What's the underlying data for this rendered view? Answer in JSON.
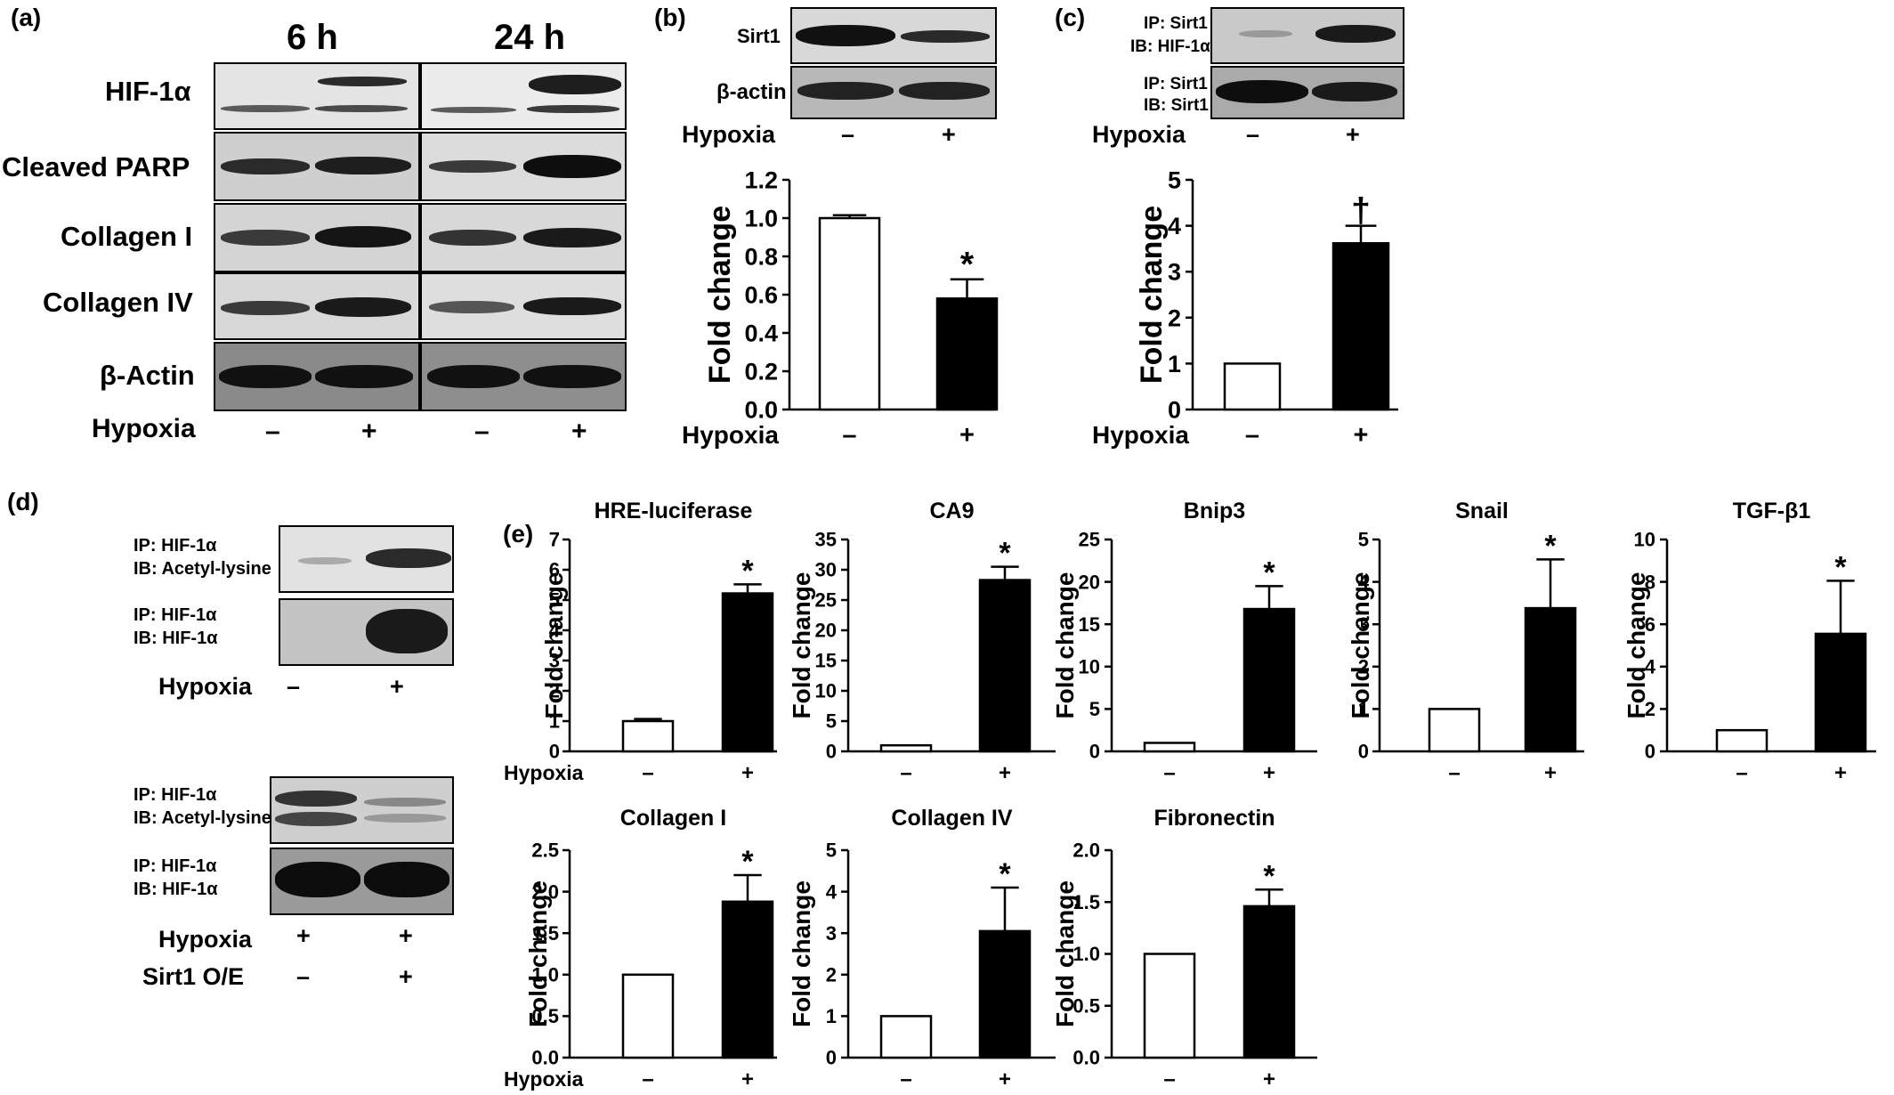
{
  "panel_letters": {
    "a": "(a)",
    "b": "(b)",
    "c": "(c)",
    "d": "(d)",
    "e": "(e)"
  },
  "panel_a": {
    "time_6h": "6 h",
    "time_24h": "24 h",
    "rows": [
      "HIF-1α",
      "Cleaved PARP",
      "Collagen I",
      "Collagen IV",
      "β-Actin"
    ],
    "condition": "Hypoxia",
    "lanes": [
      "–",
      "+",
      "–",
      "+"
    ]
  },
  "panel_b": {
    "blot_rows": [
      "Sirt1",
      "β-actin"
    ],
    "condition": "Hypoxia",
    "lanes": [
      "–",
      "+"
    ]
  },
  "panel_c": {
    "row1_ip": "IP: Sirt1",
    "row1_ib": "IB: HIF-1α",
    "row2_ip": "IP: Sirt1",
    "row2_ib": "IB: Sirt1",
    "condition": "Hypoxia",
    "lanes": [
      "–",
      "+"
    ]
  },
  "panel_d": {
    "top": {
      "row1_ip": "IP:  HIF-1α",
      "row1_ib": "IB: Acetyl-lysine",
      "row2_ip": "IP:  HIF-1α",
      "row2_ib": "IB:  HIF-1α",
      "condition": "Hypoxia",
      "lanes": [
        "–",
        "+"
      ]
    },
    "bottom": {
      "row1_ip": "IP:  HIF-1α",
      "row1_ib": "IB: Acetyl-lysine",
      "row2_ip": "IP:  HIF-1α",
      "row2_ib": "IB:  HIF-1α",
      "condition1": "Hypoxia",
      "condition1_lanes": [
        "+",
        "+"
      ],
      "condition2": "Sirt1 O/E",
      "condition2_lanes": [
        "–",
        "+"
      ]
    }
  },
  "chart_data": [
    {
      "id": "b",
      "type": "bar",
      "title": "",
      "ylabel": "Fold change",
      "categories": [
        "–",
        "+"
      ],
      "values": [
        1.0,
        0.58
      ],
      "errors": [
        0.015,
        0.1
      ],
      "ylim": [
        0,
        1.2
      ],
      "yticks": [
        "0.0",
        "0.2",
        "0.4",
        "0.6",
        "0.8",
        "1.0",
        "1.2"
      ],
      "annotation": "*",
      "xlabel": "Hypoxia",
      "fill": [
        "#ffffff",
        "#000000"
      ]
    },
    {
      "id": "c",
      "type": "bar",
      "title": "",
      "ylabel": "Fold change",
      "categories": [
        "–",
        "+"
      ],
      "values": [
        1.0,
        3.62
      ],
      "errors": [
        0,
        0.38
      ],
      "ylim": [
        0,
        5
      ],
      "yticks": [
        "0",
        "1",
        "2",
        "3",
        "4",
        "5"
      ],
      "annotation": "†",
      "xlabel": "Hypoxia",
      "fill": [
        "#ffffff",
        "#000000"
      ]
    },
    {
      "id": "e1",
      "type": "bar",
      "title": "HRE-luciferase",
      "ylabel": "Fold change",
      "categories": [
        "–",
        "+"
      ],
      "values": [
        1.0,
        5.22
      ],
      "errors": [
        0.07,
        0.3
      ],
      "ylim": [
        0,
        7
      ],
      "yticks": [
        "0",
        "1",
        "2",
        "3",
        "4",
        "5",
        "6",
        "7"
      ],
      "annotation": "*",
      "xlabel": "Hypoxia",
      "fill": [
        "#ffffff",
        "#000000"
      ]
    },
    {
      "id": "e2",
      "type": "bar",
      "title": "CA9",
      "ylabel": "Fold change",
      "categories": [
        "–",
        "+"
      ],
      "values": [
        1.0,
        28.3
      ],
      "errors": [
        0,
        2.2
      ],
      "ylim": [
        0,
        35
      ],
      "yticks": [
        "0",
        "5",
        "10",
        "15",
        "20",
        "25",
        "30",
        "35"
      ],
      "annotation": "*",
      "xlabel": "",
      "fill": [
        "#ffffff",
        "#000000"
      ]
    },
    {
      "id": "e3",
      "type": "bar",
      "title": "Bnip3",
      "ylabel": "Fold change",
      "categories": [
        "–",
        "+"
      ],
      "values": [
        1.0,
        16.8
      ],
      "errors": [
        0,
        2.7
      ],
      "ylim": [
        0,
        25
      ],
      "yticks": [
        "0",
        "5",
        "10",
        "15",
        "20",
        "25"
      ],
      "annotation": "*",
      "xlabel": "",
      "fill": [
        "#ffffff",
        "#000000"
      ]
    },
    {
      "id": "e4",
      "type": "bar",
      "title": "Snail",
      "ylabel": "Fold change",
      "categories": [
        "–",
        "+"
      ],
      "values": [
        1.0,
        3.38
      ],
      "errors": [
        0,
        1.15
      ],
      "ylim": [
        0,
        5
      ],
      "yticks": [
        "0",
        "1",
        "2",
        "3",
        "4",
        "5"
      ],
      "annotation": "*",
      "xlabel": "",
      "fill": [
        "#ffffff",
        "#000000"
      ]
    },
    {
      "id": "e5",
      "type": "bar",
      "title": "TGF-β1",
      "ylabel": "Fold change",
      "categories": [
        "–",
        "+"
      ],
      "values": [
        1.0,
        5.55
      ],
      "errors": [
        0,
        2.5
      ],
      "ylim": [
        0,
        10
      ],
      "yticks": [
        "0",
        "2",
        "4",
        "6",
        "8",
        "10"
      ],
      "annotation": "*",
      "xlabel": "",
      "fill": [
        "#ffffff",
        "#000000"
      ]
    },
    {
      "id": "e6",
      "type": "bar",
      "title": "Collagen I",
      "ylabel": "Fold change",
      "categories": [
        "–",
        "+"
      ],
      "values": [
        1.0,
        1.88
      ],
      "errors": [
        0,
        0.32
      ],
      "ylim": [
        0,
        2.5
      ],
      "yticks": [
        "0.0",
        "0.5",
        "1.0",
        "1.5",
        "2.0",
        "2.5"
      ],
      "annotation": "*",
      "xlabel": "Hypoxia",
      "fill": [
        "#ffffff",
        "#000000"
      ]
    },
    {
      "id": "e7",
      "type": "bar",
      "title": "Collagen IV",
      "ylabel": "Fold change",
      "categories": [
        "–",
        "+"
      ],
      "values": [
        1.0,
        3.05
      ],
      "errors": [
        0,
        1.05
      ],
      "ylim": [
        0,
        5
      ],
      "yticks": [
        "0",
        "1",
        "2",
        "3",
        "4",
        "5"
      ],
      "annotation": "*",
      "xlabel": "",
      "fill": [
        "#ffffff",
        "#000000"
      ]
    },
    {
      "id": "e8",
      "type": "bar",
      "title": "Fibronectin",
      "ylabel": "Fold change",
      "categories": [
        "–",
        "+"
      ],
      "values": [
        1.0,
        1.46
      ],
      "errors": [
        0,
        0.16
      ],
      "ylim": [
        0,
        2.0
      ],
      "yticks": [
        "0.0",
        "0.5",
        "1.0",
        "1.5",
        "2.0"
      ],
      "annotation": "*",
      "xlabel": "",
      "fill": [
        "#ffffff",
        "#000000"
      ]
    }
  ]
}
